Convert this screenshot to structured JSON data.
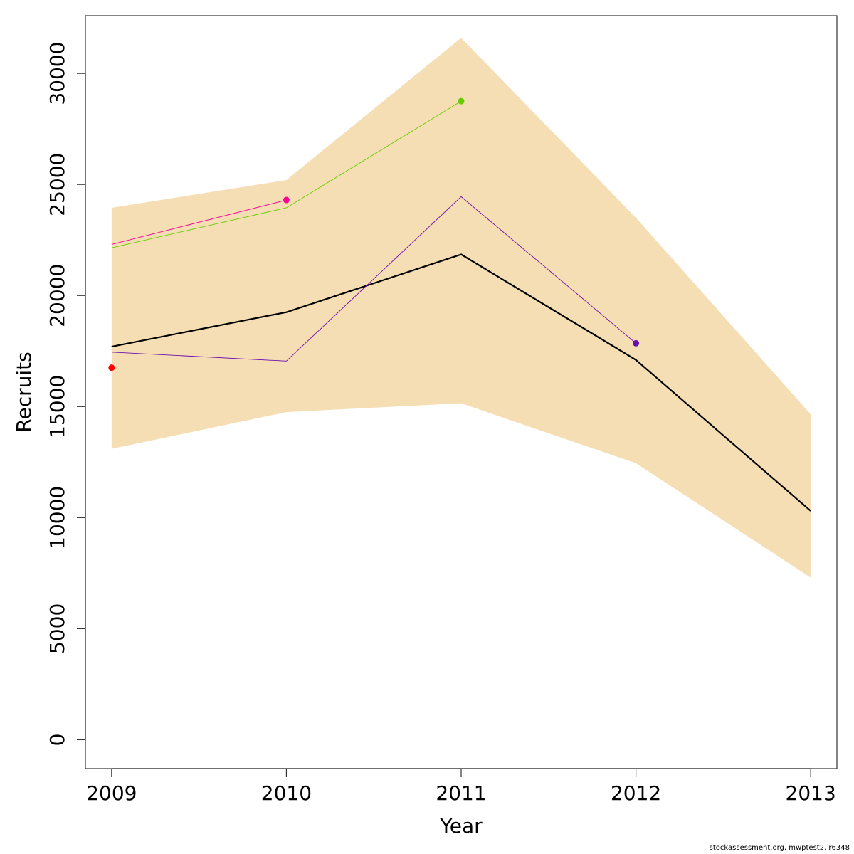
{
  "chart_data": {
    "type": "line",
    "xlabel": "Year",
    "ylabel": "Recruits",
    "x": [
      2009,
      2010,
      2011,
      2012,
      2013
    ],
    "x_ticks": [
      "2009",
      "2010",
      "2011",
      "2012",
      "2013"
    ],
    "y_ticks": [
      "0",
      "5000",
      "10000",
      "15000",
      "20000",
      "25000",
      "30000"
    ],
    "xlim": [
      2008.85,
      2013.15
    ],
    "ylim": [
      -1300,
      32600
    ],
    "grid": false,
    "band": {
      "lower": [
        13100,
        14750,
        15150,
        12450,
        7300
      ],
      "upper": [
        23950,
        25200,
        31600,
        23500,
        14650
      ],
      "color": "#F5DEB3"
    },
    "series": [
      {
        "x": [
          2009,
          2010,
          2011,
          2012,
          2013
        ],
        "values": [
          17700,
          19250,
          21850,
          17100,
          10300
        ],
        "color": "#000000",
        "width": 2.2,
        "end_point": false
      },
      {
        "x": [
          2009,
          2010,
          2011,
          2012
        ],
        "values": [
          17450,
          17050,
          24450,
          17850
        ],
        "color": "#6A0DAD",
        "width": 0.9,
        "end_point": true
      },
      {
        "x": [
          2009,
          2010,
          2011
        ],
        "values": [
          22150,
          23950,
          28750
        ],
        "color": "#66CC00",
        "width": 0.9,
        "end_point": true
      },
      {
        "x": [
          2009,
          2010
        ],
        "values": [
          22300,
          24300
        ],
        "color": "#FF0099",
        "width": 0.9,
        "end_point": true
      },
      {
        "x": [
          2009
        ],
        "values": [
          16750
        ],
        "color": "#FF0000",
        "width": 0.9,
        "end_point": true
      }
    ]
  },
  "footer": "stockassessment.org, mwptest2, r6348"
}
